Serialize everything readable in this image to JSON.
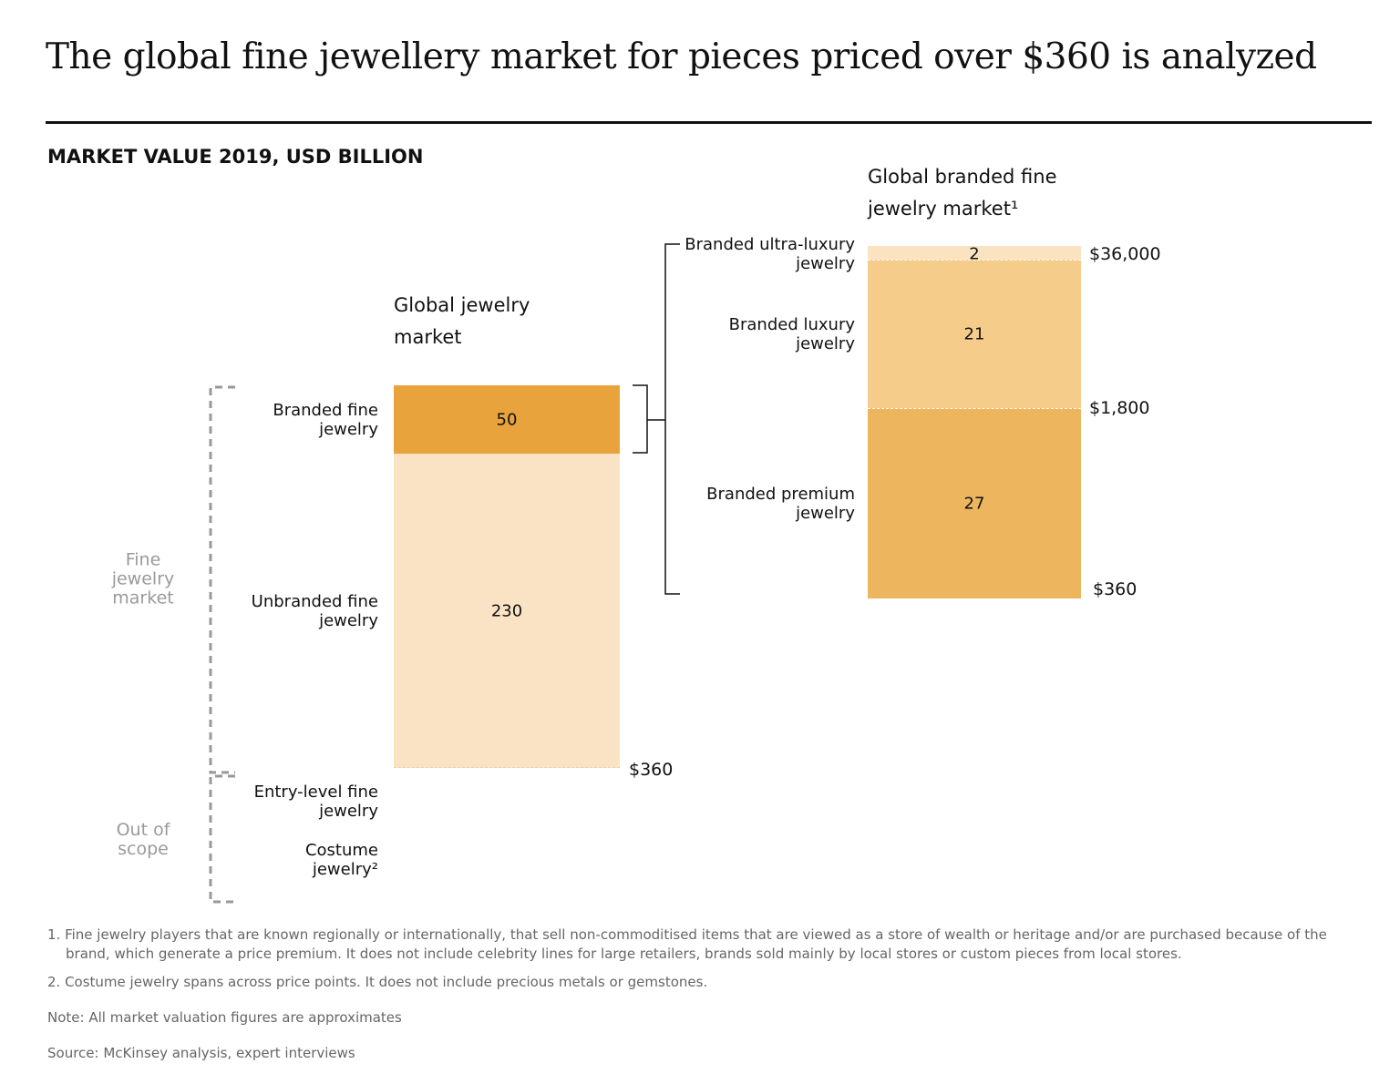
{
  "header": {
    "title": "The global fine jewellery market for pieces priced over $360 is analyzed",
    "subtitle": "MARKET VALUE 2019, USD BILLION"
  },
  "chart_data": [
    {
      "type": "stacked-bar",
      "title": "Global jewelry market",
      "categories": [
        "Branded fine jewelry",
        "Unbranded fine jewelry"
      ],
      "values": [
        50,
        230
      ],
      "colors": [
        "#e8a33d",
        "#fae3c4"
      ],
      "boundary_labels": [
        "$360"
      ],
      "groups": [
        "Fine jewelry market",
        "Out of scope"
      ],
      "out_of_scope_items": [
        "Entry-level fine jewelry",
        "Costume jewelry²"
      ]
    },
    {
      "type": "stacked-bar",
      "title": "Global branded fine jewelry market¹",
      "categories": [
        "Branded ultra-luxury jewelry",
        "Branded luxury jewelry",
        "Branded premium jewelry"
      ],
      "values": [
        2,
        21,
        27
      ],
      "colors": [
        "#fbe3c2",
        "#f5cc8a",
        "#edb65e"
      ],
      "boundary_labels": [
        "$36,000",
        "$1,800",
        "$360"
      ]
    }
  ],
  "footnotes": [
    "1. Fine jewelry players that are known regionally or internationally, that sell non-commoditised items that are viewed as a store of wealth or heritage and/or are purchased because of the brand, which generate a price premium. It does not include celebrity lines for large retailers, brands sold mainly by local stores or custom pieces from local stores.",
    "2. Costume jewelry spans across price points. It does not include precious metals or gemstones."
  ],
  "note": "Note: All market valuation figures are approximates",
  "source": "Source: McKinsey analysis, expert interviews"
}
